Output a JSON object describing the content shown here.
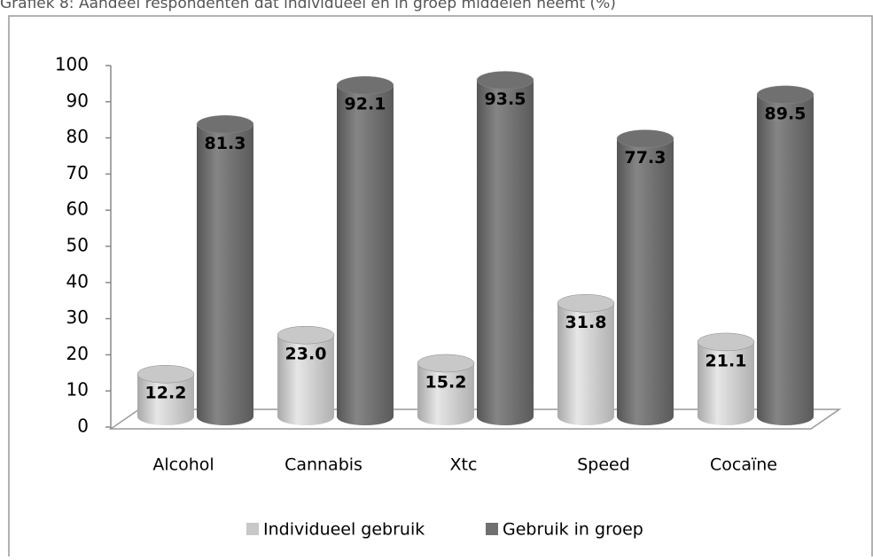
{
  "chart_data": {
    "type": "bar3d",
    "title": "Grafiek 8: Aandeel respondenten dat individueel en in groep middelen neemt (%)",
    "categories": [
      "Alcohol",
      "Cannabis",
      "Xtc",
      "Speed",
      "Cocaïne"
    ],
    "series": [
      {
        "name": "Individueel gebruik",
        "color": "#c8c8c8",
        "values": [
          12.2,
          23,
          15.2,
          31.8,
          21.1
        ],
        "value_labels": [
          "12.2",
          "23.0",
          "15.2",
          "31.8",
          "21.1"
        ]
      },
      {
        "name": "Gebruik in groep",
        "color": "#707070",
        "values": [
          81.3,
          92.1,
          93.5,
          77.3,
          89.5
        ],
        "value_labels": [
          "81.3",
          "92.1",
          "93.5",
          "77.3",
          "89.5"
        ]
      }
    ],
    "ylim": [
      0,
      100
    ],
    "yticks": [
      0,
      10,
      20,
      30,
      40,
      50,
      60,
      70,
      80,
      90,
      100
    ],
    "legend": "bottom"
  }
}
